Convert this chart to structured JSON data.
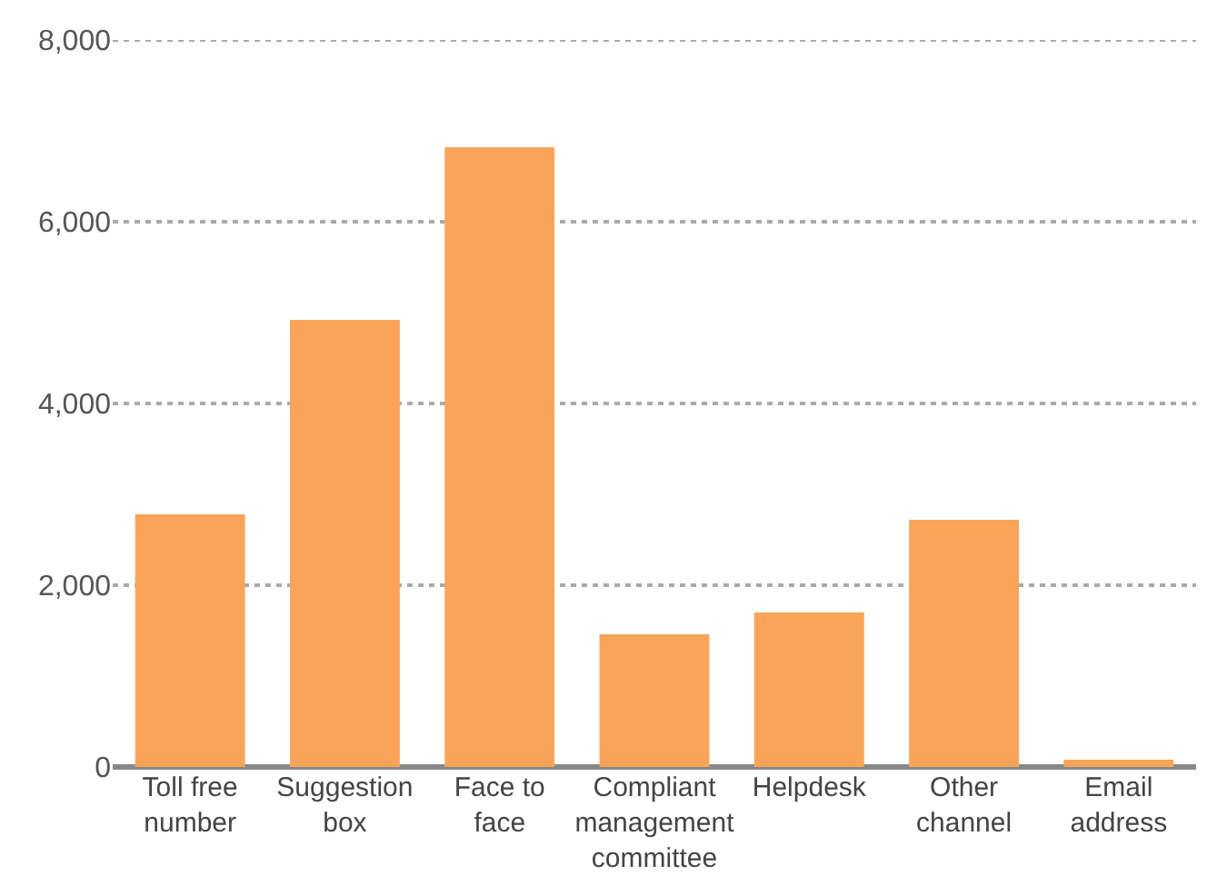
{
  "chart_data": {
    "type": "bar",
    "categories": [
      "Toll free number",
      "Suggestion box",
      "Face to face",
      "Compliant management committee",
      "Helpdesk",
      "Other channel",
      "Email address"
    ],
    "values": [
      2780,
      4920,
      6820,
      1460,
      1700,
      2720,
      80
    ],
    "color": "#f8a55a",
    "ylim": [
      0,
      8000
    ],
    "yticks": [
      {
        "value": 0,
        "label": "0"
      },
      {
        "value": 2000,
        "label": "2,000"
      },
      {
        "value": 4000,
        "label": "4,000"
      },
      {
        "value": 6000,
        "label": "6,000"
      },
      {
        "value": 8000,
        "label": "8,000"
      }
    ],
    "grid": "y"
  }
}
